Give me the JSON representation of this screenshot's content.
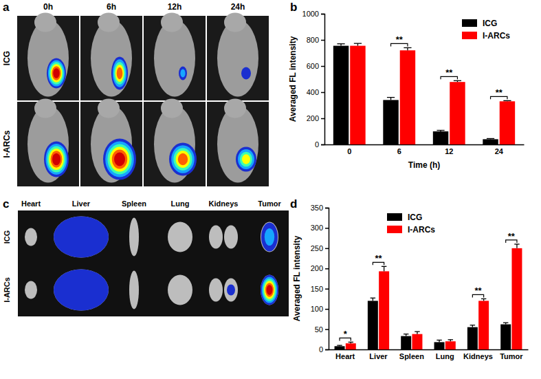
{
  "panel_labels": [
    "a",
    "b",
    "c",
    "d"
  ],
  "images": [
    {
      "columns": [
        "0h",
        "6h",
        "12h",
        "24h"
      ],
      "rows": [
        "ICG",
        "I-ARCs"
      ]
    },
    {
      "columns": [
        "Heart",
        "Liver",
        "Spleen",
        "Lung",
        "Kidneys",
        "Tumor"
      ],
      "rows": [
        "ICG",
        "I-ARCs"
      ]
    }
  ],
  "chart_data": [
    {
      "type": "bar",
      "x_label": "Time (h)",
      "y_label": "Averaged FL intensity",
      "categories": [
        "0",
        "6",
        "12",
        "24"
      ],
      "series": [
        {
          "name": "ICG",
          "color": "#000000",
          "values": [
            755,
            340,
            100,
            40
          ],
          "errors": [
            15,
            20,
            8,
            5
          ]
        },
        {
          "name": "I-ARCs",
          "color": "#ff0000",
          "values": [
            755,
            720,
            478,
            330
          ],
          "errors": [
            18,
            20,
            10,
            5
          ]
        }
      ],
      "significance": [
        null,
        "**",
        "**",
        "**"
      ],
      "ylim": [
        0,
        1000
      ],
      "yticks": [
        0,
        200,
        400,
        600,
        800,
        1000
      ],
      "legend": "upper right"
    },
    {
      "type": "bar",
      "y_label": "Averaged FL intensity",
      "categories": [
        "Heart",
        "Liver",
        "Spleen",
        "Lung",
        "Kidneys",
        "Tumor"
      ],
      "series": [
        {
          "name": "ICG",
          "color": "#000000",
          "values": [
            8,
            120,
            33,
            18,
            55,
            62
          ],
          "errors": [
            2,
            7,
            5,
            5,
            5,
            4
          ]
        },
        {
          "name": "I-ARCs",
          "color": "#ff0000",
          "values": [
            15,
            193,
            38,
            20,
            120,
            250
          ],
          "errors": [
            3,
            12,
            6,
            4,
            5,
            10
          ]
        }
      ],
      "significance": [
        "*",
        "**",
        null,
        null,
        "**",
        "**"
      ],
      "ylim": [
        0,
        350
      ],
      "yticks": [
        0,
        50,
        100,
        150,
        200,
        250,
        300,
        350
      ],
      "legend": "upper center"
    }
  ]
}
